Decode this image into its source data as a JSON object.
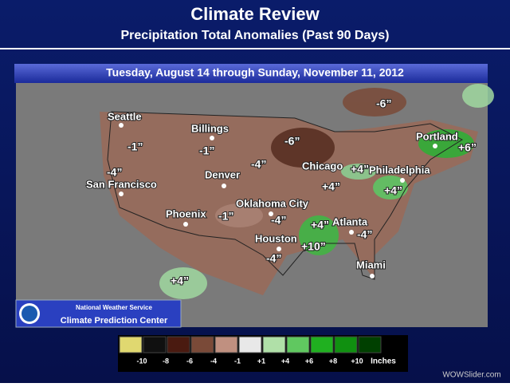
{
  "header": {
    "title": "Climate Review",
    "subtitle": "Precipitation Total Anomalies (Past 90 Days)"
  },
  "map": {
    "period": "Tuesday, August 14 through Sunday, November 11, 2012",
    "cities": [
      "Seattle",
      "Billings",
      "Denver",
      "San Francisco",
      "Phoenix",
      "Oklahoma City",
      "Chicago",
      "Philadelphia",
      "Portland",
      "Atlanta",
      "Houston",
      "Miami"
    ],
    "anomalies": [
      "-6”",
      "-1”",
      "-1”",
      "-6”",
      "-4”",
      "-4”",
      "+4”",
      "+4”",
      "+4”",
      "+6”",
      "-1”",
      "-4”",
      "+4”",
      "-4”",
      "+10”",
      "-4”",
      "+4”"
    ]
  },
  "logo": {
    "org": "National Weather Service",
    "center": "Climate Prediction Center"
  },
  "legend": {
    "items": [
      {
        "label": "-10",
        "color": "#e0d870"
      },
      {
        "label": "-8",
        "color": "#101010"
      },
      {
        "label": "-6",
        "color": "#4a1a10"
      },
      {
        "label": "-4",
        "color": "#7a4a38"
      },
      {
        "label": "-1",
        "color": "#c09080"
      },
      {
        "label": "+1",
        "color": "#e8e8e8"
      },
      {
        "label": "+4",
        "color": "#b0e0a8"
      },
      {
        "label": "+6",
        "color": "#60c860"
      },
      {
        "label": "+8",
        "color": "#20b020"
      },
      {
        "label": "+10",
        "color": "#109010"
      },
      {
        "label": "",
        "color": "#004000"
      }
    ],
    "unit": "Inches"
  },
  "watermark": "WOWSlider.com"
}
